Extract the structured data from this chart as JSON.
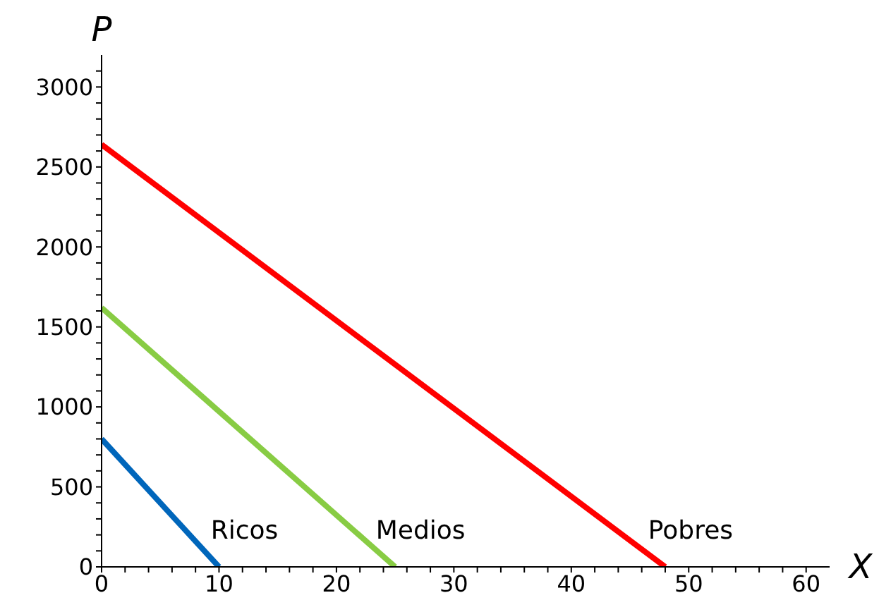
{
  "chart_data": {
    "type": "line",
    "xlabel": "X",
    "ylabel": "P",
    "xlim": [
      0,
      62
    ],
    "ylim": [
      0,
      3200
    ],
    "xticks": [
      0,
      {
        "value": 2,
        "label": null
      },
      {
        "value": 4,
        "label": null
      },
      {
        "value": 6,
        "label": null
      },
      {
        "value": 8,
        "label": null
      },
      10,
      {
        "value": 12,
        "label": null
      },
      {
        "value": 14,
        "label": null
      },
      {
        "value": 16,
        "label": null
      },
      {
        "value": 18,
        "label": null
      },
      20,
      {
        "value": 22,
        "label": null
      },
      {
        "value": 24,
        "label": null
      },
      {
        "value": 26,
        "label": null
      },
      {
        "value": 28,
        "label": null
      },
      30,
      {
        "value": 32,
        "label": null
      },
      {
        "value": 34,
        "label": null
      },
      {
        "value": 36,
        "label": null
      },
      {
        "value": 38,
        "label": null
      },
      40,
      {
        "value": 42,
        "label": null
      },
      {
        "value": 44,
        "label": null
      },
      {
        "value": 46,
        "label": null
      },
      {
        "value": 48,
        "label": null
      },
      50,
      {
        "value": 52,
        "label": null
      },
      {
        "value": 54,
        "label": null
      },
      {
        "value": 56,
        "label": null
      },
      {
        "value": 58,
        "label": null
      },
      60
    ],
    "yticks": [
      0,
      {
        "value": 100,
        "label": null
      },
      {
        "value": 200,
        "label": null
      },
      {
        "value": 300,
        "label": null
      },
      {
        "value": 400,
        "label": null
      },
      500,
      {
        "value": 600,
        "label": null
      },
      {
        "value": 700,
        "label": null
      },
      {
        "value": 800,
        "label": null
      },
      {
        "value": 900,
        "label": null
      },
      1000,
      {
        "value": 1100,
        "label": null
      },
      {
        "value": 1200,
        "label": null
      },
      {
        "value": 1300,
        "label": null
      },
      {
        "value": 1400,
        "label": null
      },
      1500,
      {
        "value": 1600,
        "label": null
      },
      {
        "value": 1700,
        "label": null
      },
      {
        "value": 1800,
        "label": null
      },
      {
        "value": 1900,
        "label": null
      },
      2000,
      {
        "value": 2100,
        "label": null
      },
      {
        "value": 2200,
        "label": null
      },
      {
        "value": 2300,
        "label": null
      },
      {
        "value": 2400,
        "label": null
      },
      2500,
      {
        "value": 2600,
        "label": null
      },
      {
        "value": 2700,
        "label": null
      },
      {
        "value": 2800,
        "label": null
      },
      {
        "value": 2900,
        "label": null
      },
      3000,
      {
        "value": 3100,
        "label": null
      }
    ],
    "grid": false,
    "legend": false,
    "marker": "none",
    "line_style": "solid",
    "series": [
      {
        "name": "Ricos",
        "color": "#0066bb",
        "x": [
          0,
          10
        ],
        "values": [
          800,
          0
        ]
      },
      {
        "name": "Medios",
        "color": "#88cc44",
        "x": [
          0,
          25
        ],
        "values": [
          1620,
          0
        ]
      },
      {
        "name": "Pobres",
        "color": "#ff0000",
        "x": [
          0,
          48
        ],
        "values": [
          2640,
          0
        ]
      }
    ]
  }
}
